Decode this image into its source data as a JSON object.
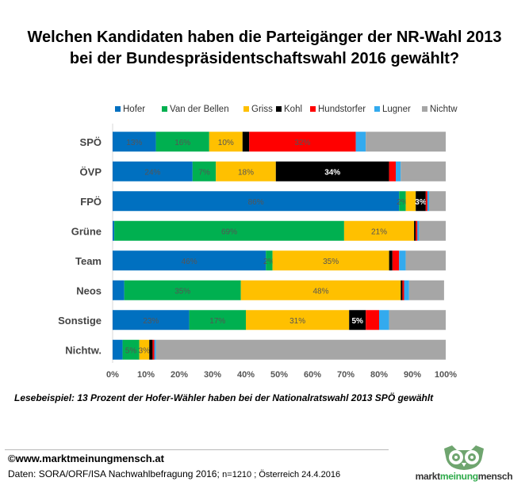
{
  "header": {
    "title": "Welchen Kandidaten haben die Parteigänger der NR-Wahl 2013\nbei der Bundespräsidentschaftswahl 2016 gewählt?"
  },
  "chart_data": {
    "type": "bar",
    "orientation": "horizontal",
    "stacked": true,
    "percent": true,
    "title": "Welchen Kandidaten haben die Parteigänger der NR-Wahl 2013 bei der Bundespräsidentschaftswahl 2016 gewählt?",
    "categories": [
      "SPÖ",
      "ÖVP",
      "FPÖ",
      "Grüne",
      "Team",
      "Neos",
      "Sonstige",
      "Nichtw."
    ],
    "xlim": [
      0,
      100
    ],
    "xticks": [
      "0%",
      "10%",
      "20%",
      "30%",
      "40%",
      "50%",
      "60%",
      "70%",
      "80%",
      "90%",
      "100%"
    ],
    "grid": false,
    "legend_position": "top",
    "series": [
      {
        "name": "Hofer",
        "color": "#0070c0",
        "values": [
          13,
          24,
          86,
          0.5,
          46,
          3.5,
          23,
          3
        ],
        "labels": [
          "13%",
          "24%",
          "86%",
          "",
          "46%",
          "",
          "23%",
          ""
        ]
      },
      {
        "name": "Van der Bellen",
        "color": "#00b050",
        "values": [
          16,
          7,
          2,
          69,
          2,
          35,
          17,
          5
        ],
        "labels": [
          "16%",
          "7%",
          "2%",
          "69%",
          "2%",
          "35%",
          "17%",
          "5%"
        ]
      },
      {
        "name": "Griss",
        "color": "#ffc000",
        "values": [
          10,
          18,
          3,
          21,
          35,
          48,
          31,
          3
        ],
        "labels": [
          "10%",
          "18%",
          "",
          "21%",
          "35%",
          "48%",
          "31%",
          "3%"
        ]
      },
      {
        "name": "Kohl",
        "color": "#000000",
        "values": [
          2,
          34,
          3,
          0.5,
          1,
          0.5,
          5,
          1
        ],
        "labels": [
          "",
          "34%",
          "3%",
          "",
          "",
          "",
          "5%",
          ""
        ]
      },
      {
        "name": "Hundstorfer",
        "color": "#ff0000",
        "values": [
          32,
          2,
          0.5,
          0.5,
          2,
          0.5,
          4,
          0.5
        ],
        "labels": [
          "32%",
          "",
          "",
          "",
          "",
          "",
          "",
          ""
        ]
      },
      {
        "name": "Lugner",
        "color": "#33aaee",
        "values": [
          3,
          1.5,
          0.5,
          0.5,
          2,
          1.5,
          3,
          0.5
        ],
        "labels": [
          "",
          "",
          "",
          "",
          "",
          "",
          "",
          ""
        ]
      },
      {
        "name": "Nichtw",
        "color": "#a6a6a6",
        "values": [
          24,
          13.5,
          5,
          8,
          12,
          10.5,
          17,
          87
        ],
        "labels": [
          "",
          "",
          "",
          "",
          "",
          "",
          "",
          ""
        ]
      }
    ]
  },
  "footer": {
    "reading_example": "Lesebeispiel: 13 Prozent der Hofer-Wähler haben bei der Nationalratswahl 2013 SPÖ gewählt",
    "copyright": "©www.marktmeinungmensch.at",
    "source_main": "Daten: SORA/ORF/ISA Nachwahlbefragung 2016; ",
    "source_detail": "n=1210 ; Österreich 24.4.2016",
    "logo_prefix": "markt",
    "logo_accent": "meinung",
    "logo_suffix": "mensch"
  }
}
